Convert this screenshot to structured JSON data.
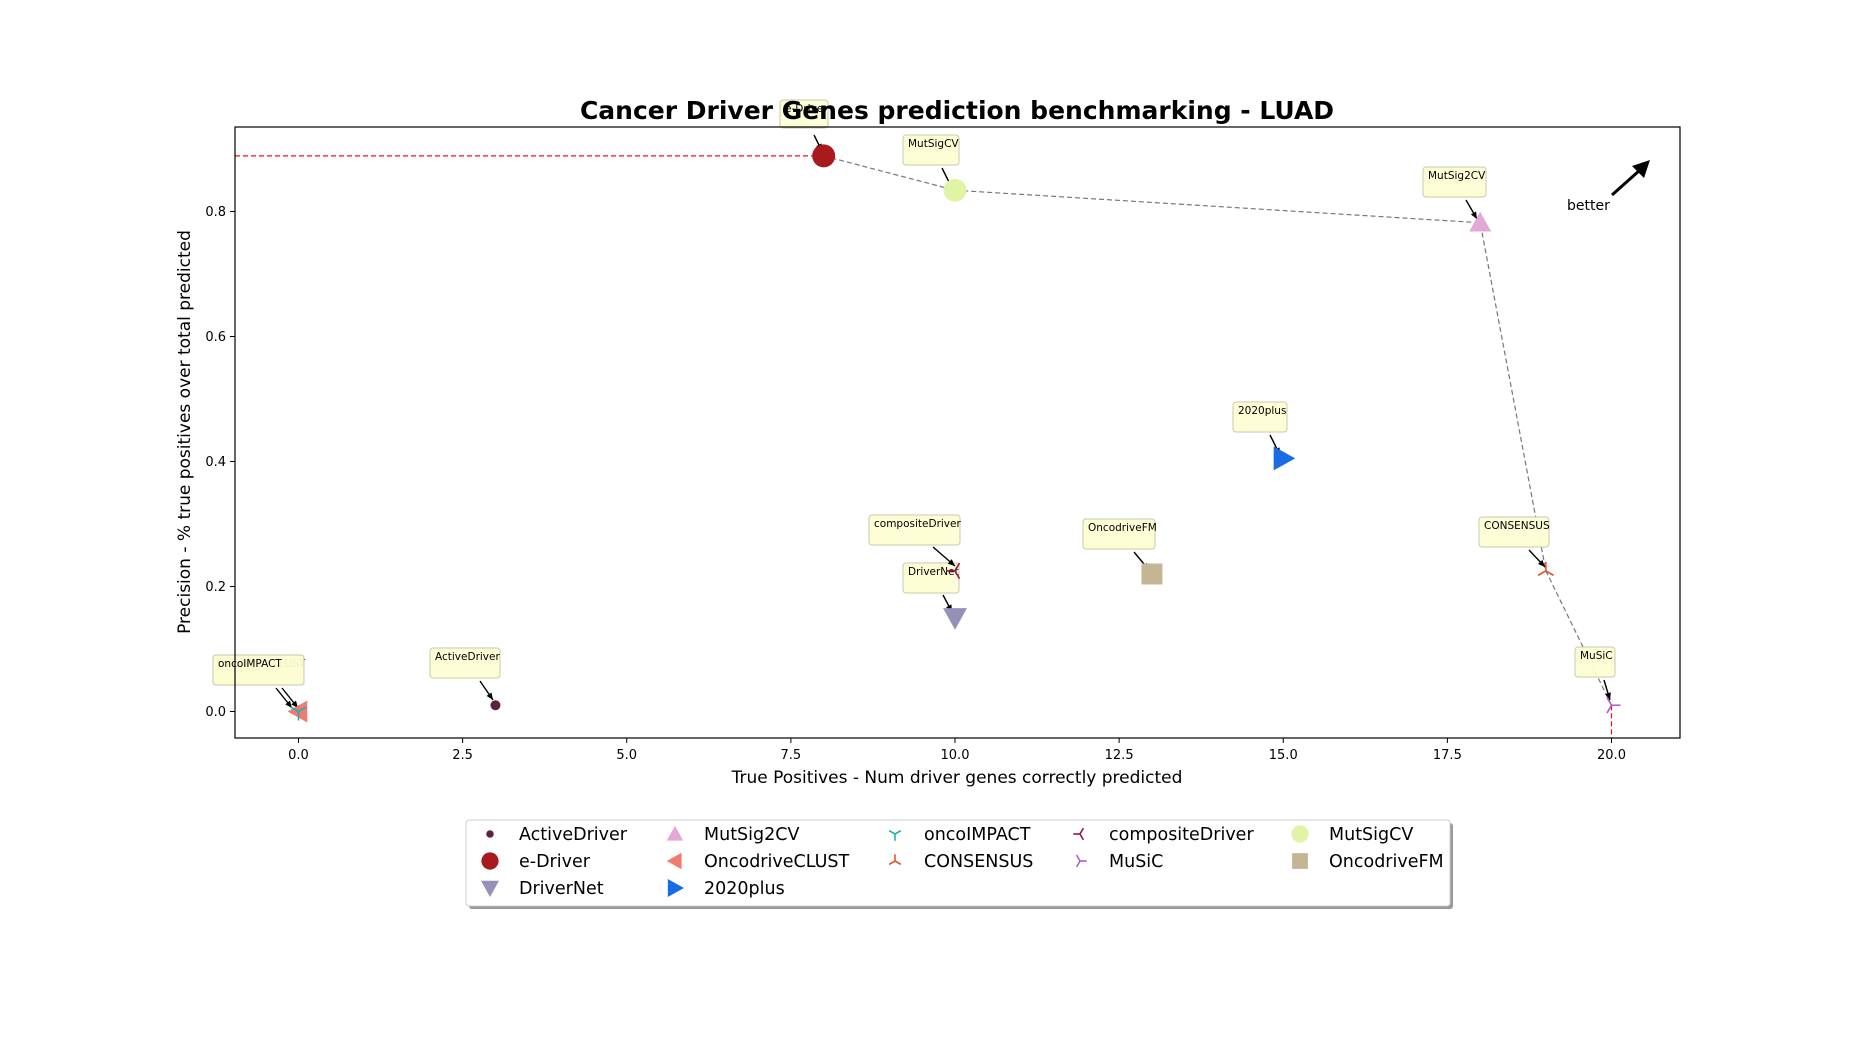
{
  "chart_data": {
    "type": "scatter",
    "title": "Cancer Driver Genes prediction benchmarking - LUAD",
    "xlabel": "True Positives - Num driver genes correctly predicted",
    "ylabel": "Precision - % true positives over total predicted",
    "xlim": [
      -1.0,
      21.0
    ],
    "ylim": [
      -0.043,
      0.93
    ],
    "xticks": [
      0.0,
      2.5,
      5.0,
      7.5,
      10.0,
      12.5,
      15.0,
      17.5,
      20.0
    ],
    "yticks": [
      0.0,
      0.2,
      0.4,
      0.6,
      0.8
    ],
    "grid": false,
    "legend_position": "bottom-center",
    "annotation": "better",
    "series": [
      {
        "name": "ActiveDriver",
        "x": 3,
        "y": 0.01,
        "marker": "dot",
        "color": "#5b2341"
      },
      {
        "name": "e-Driver",
        "x": 8,
        "y": 0.889,
        "marker": "circle",
        "color": "#a81a1e"
      },
      {
        "name": "DriverNet",
        "x": 10,
        "y": 0.15,
        "marker": "triangle-down",
        "color": "#9590b8"
      },
      {
        "name": "MutSig2CV",
        "x": 18,
        "y": 0.782,
        "marker": "triangle-up",
        "color": "#e4a8d8"
      },
      {
        "name": "OncodriveCLUST",
        "x": 0,
        "y": 0.0,
        "marker": "triangle-left",
        "color": "#f37b6d"
      },
      {
        "name": "2020plus",
        "x": 15,
        "y": 0.405,
        "marker": "triangle-right",
        "color": "#1a6ce4"
      },
      {
        "name": "oncoIMPACT",
        "x": 0,
        "y": 0.0,
        "marker": "tri-down",
        "color": "#18b4b4"
      },
      {
        "name": "CONSENSUS",
        "x": 19,
        "y": 0.225,
        "marker": "tri-up",
        "color": "#e1572d"
      },
      {
        "name": "compositeDriver",
        "x": 10,
        "y": 0.225,
        "marker": "tri-left",
        "color": "#8b1a52"
      },
      {
        "name": "MuSiC",
        "x": 20,
        "y": 0.01,
        "marker": "tri-right",
        "color": "#b05bd1"
      },
      {
        "name": "MutSigCV",
        "x": 10,
        "y": 0.834,
        "marker": "circle",
        "color": "#dff5a5"
      },
      {
        "name": "OncodriveFM",
        "x": 13,
        "y": 0.22,
        "marker": "square",
        "color": "#c4b593"
      }
    ],
    "pareto_front": [
      [
        8,
        0.889
      ],
      [
        10,
        0.834
      ],
      [
        18,
        0.782
      ],
      [
        19,
        0.225
      ],
      [
        20,
        0.01
      ]
    ],
    "annotations": [
      {
        "label": "e-Driver",
        "series": "e-Driver"
      },
      {
        "label": "MutSigCV",
        "series": "MutSigCV"
      },
      {
        "label": "MutSig2CV",
        "series": "MutSig2CV"
      },
      {
        "label": "2020plus",
        "series": "2020plus"
      },
      {
        "label": "compositeDriver",
        "series": "compositeDriver"
      },
      {
        "label": "DriverNet",
        "series": "DriverNet"
      },
      {
        "label": "OncodriveFM",
        "series": "OncodriveFM"
      },
      {
        "label": "CONSENSUS",
        "series": "CONSENSUS"
      },
      {
        "label": "MuSiC",
        "series": "MuSiC"
      },
      {
        "label": "ActiveDriver",
        "series": "ActiveDriver"
      },
      {
        "label": "OncodriveCLUST",
        "series": "OncodriveCLUST"
      },
      {
        "label": "oncoIMPACT",
        "series": "oncoIMPACT"
      }
    ],
    "legend_order": [
      [
        "ActiveDriver",
        "e-Driver",
        "DriverNet"
      ],
      [
        "MutSig2CV",
        "OncodriveCLUST",
        "2020plus"
      ],
      [
        "oncoIMPACT",
        "CONSENSUS"
      ],
      [
        "compositeDriver",
        "MuSiC"
      ],
      [
        "MutSigCV",
        "OncodriveFM"
      ]
    ]
  }
}
